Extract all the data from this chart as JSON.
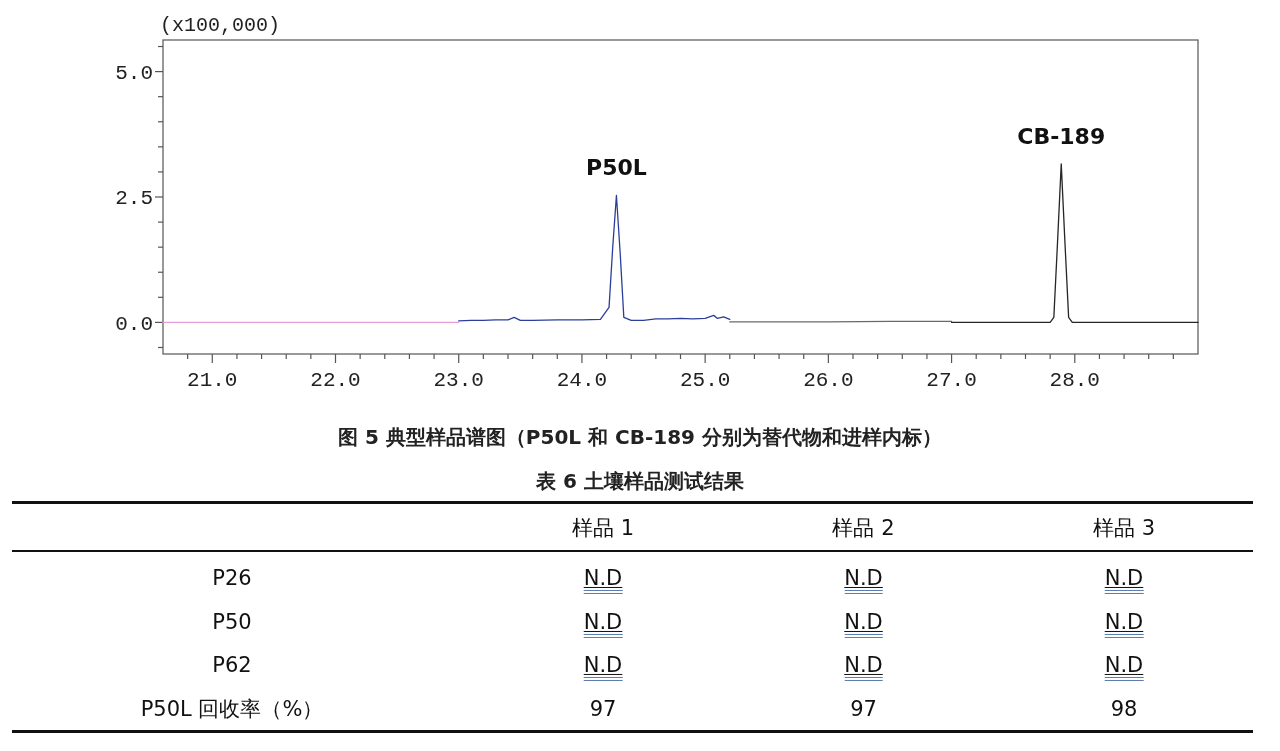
{
  "chart_data": [
    {
      "type": "line",
      "title": "图 5 典型样品谱图（P50L 和 CB-189 分别为替代物和进样内标）",
      "ylabel": "(x100,000)",
      "xlim": [
        20.6,
        29.0
      ],
      "ylim": [
        -0.63,
        5.63
      ],
      "xticks": [
        {
          "value": 20.8,
          "label": null
        },
        {
          "value": 21,
          "label": "21.0"
        },
        {
          "value": 21.2,
          "label": null
        },
        {
          "value": 21.4,
          "label": null
        },
        {
          "value": 21.6,
          "label": null
        },
        {
          "value": 21.8,
          "label": null
        },
        {
          "value": 22,
          "label": "22.0"
        },
        {
          "value": 22.2,
          "label": null
        },
        {
          "value": 22.4,
          "label": null
        },
        {
          "value": 22.6,
          "label": null
        },
        {
          "value": 22.8,
          "label": null
        },
        {
          "value": 23,
          "label": "23.0"
        },
        {
          "value": 23.2,
          "label": null
        },
        {
          "value": 23.4,
          "label": null
        },
        {
          "value": 23.6,
          "label": null
        },
        {
          "value": 23.8,
          "label": null
        },
        {
          "value": 24,
          "label": "24.0"
        },
        {
          "value": 24.2,
          "label": null
        },
        {
          "value": 24.4,
          "label": null
        },
        {
          "value": 24.6,
          "label": null
        },
        {
          "value": 24.8,
          "label": null
        },
        {
          "value": 25,
          "label": "25.0"
        },
        {
          "value": 25.2,
          "label": null
        },
        {
          "value": 25.4,
          "label": null
        },
        {
          "value": 25.6,
          "label": null
        },
        {
          "value": 25.8,
          "label": null
        },
        {
          "value": 26,
          "label": "26.0"
        },
        {
          "value": 26.2,
          "label": null
        },
        {
          "value": 26.4,
          "label": null
        },
        {
          "value": 26.6,
          "label": null
        },
        {
          "value": 26.8,
          "label": null
        },
        {
          "value": 27,
          "label": "27.0"
        },
        {
          "value": 27.2,
          "label": null
        },
        {
          "value": 27.4,
          "label": null
        },
        {
          "value": 27.6,
          "label": null
        },
        {
          "value": 27.8,
          "label": null
        },
        {
          "value": 28,
          "label": "28.0"
        },
        {
          "value": 28.2,
          "label": null
        },
        {
          "value": 28.4,
          "label": null
        },
        {
          "value": 28.6,
          "label": null
        },
        {
          "value": 28.8,
          "label": null
        }
      ],
      "yticks": [
        {
          "value": -0.5,
          "label": null
        },
        {
          "value": 0,
          "label": "0.0"
        },
        {
          "value": 0.5,
          "label": null
        },
        {
          "value": 1,
          "label": null
        },
        {
          "value": 1.5,
          "label": null
        },
        {
          "value": 2,
          "label": null
        },
        2.5,
        {
          "value": 3,
          "label": null
        },
        {
          "value": 3.5,
          "label": null
        },
        {
          "value": 4,
          "label": null
        },
        {
          "value": 4.5,
          "label": null
        },
        {
          "value": 5,
          "label": "5.0"
        },
        {
          "value": 5.5,
          "label": null
        }
      ],
      "series": [
        {
          "color": "#e6a0dc",
          "x": [
            20.6,
            21.2,
            21.8,
            22.4,
            23.0
          ],
          "values": [
            0,
            0,
            0,
            0,
            0
          ]
        },
        {
          "color": "#2b3f9a",
          "x": [
            23.0,
            23.1,
            23.2,
            23.3,
            23.4,
            23.45,
            23.5,
            23.6,
            23.8,
            24.0,
            24.15,
            24.22,
            24.25,
            24.28,
            24.31,
            24.34,
            24.4,
            24.5,
            24.6,
            24.7,
            24.8,
            24.9,
            25.0,
            25.07,
            25.1,
            25.15,
            25.2
          ],
          "values": [
            0.03,
            0.04,
            0.04,
            0.05,
            0.05,
            0.1,
            0.04,
            0.04,
            0.05,
            0.05,
            0.06,
            0.3,
            1.5,
            2.53,
            1.4,
            0.1,
            0.04,
            0.04,
            0.07,
            0.07,
            0.08,
            0.07,
            0.08,
            0.14,
            0.08,
            0.11,
            0.06
          ]
        },
        {
          "color": "#6a6a6a",
          "x": [
            25.2,
            25.5,
            26.0,
            26.5,
            27.0
          ],
          "values": [
            0.01,
            0.01,
            0.01,
            0.02,
            0.02
          ]
        },
        {
          "color": "#262626",
          "x": [
            27.0,
            27.5,
            27.8,
            27.83,
            27.86,
            27.89,
            27.92,
            27.95,
            27.98,
            28.5,
            29.0
          ],
          "values": [
            0,
            0,
            0,
            0.1,
            1.6,
            3.16,
            1.6,
            0.1,
            0,
            0,
            0
          ]
        }
      ],
      "annotations": [
        {
          "text": "P50L",
          "x": 24.28,
          "y": 2.53
        },
        {
          "text": "CB-189",
          "x": 27.89,
          "y": 3.16
        }
      ]
    },
    {
      "type": "other",
      "title": "表 6 土壤样品测试结果",
      "categories": [
        "样品 1",
        "样品 2",
        "样品 3"
      ],
      "y_categories": [
        "P26",
        "P50",
        "P62",
        "P50L 回收率（%）"
      ],
      "cell_labels": [
        [
          "N.D",
          "N.D",
          "N.D"
        ],
        [
          "N.D",
          "N.D",
          "N.D"
        ],
        [
          "N.D",
          "N.D",
          "N.D"
        ],
        [
          "97",
          "97",
          "98"
        ]
      ]
    }
  ]
}
